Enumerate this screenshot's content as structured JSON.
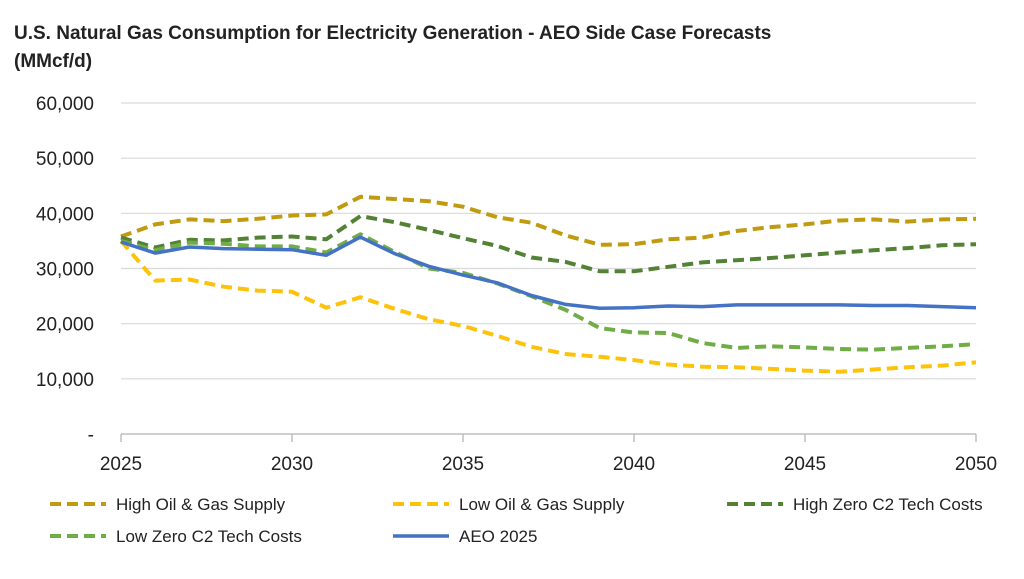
{
  "chart_data": {
    "type": "line",
    "title": "U.S. Natural Gas Consumption for Electricity Generation - AEO Side Case Forecasts",
    "subtitle": "(MMcf/d)",
    "xlim": [
      2025,
      2050
    ],
    "ylim": [
      0,
      60000
    ],
    "x_ticks": [
      2025,
      2030,
      2035,
      2040,
      2045,
      2050
    ],
    "y_ticks": [
      0,
      10000,
      20000,
      30000,
      40000,
      50000,
      60000
    ],
    "y_tick_labels": [
      "-",
      "10,000",
      "20,000",
      "30,000",
      "40,000",
      "50,000",
      "60,000"
    ],
    "grid": "horizontal",
    "legend": "bottom",
    "x": [
      2025,
      2026,
      2027,
      2028,
      2029,
      2030,
      2031,
      2032,
      2033,
      2034,
      2035,
      2036,
      2037,
      2038,
      2039,
      2040,
      2041,
      2042,
      2043,
      2044,
      2045,
      2046,
      2047,
      2048,
      2049,
      2050
    ],
    "series": [
      {
        "name": "High Oil & Gas Supply",
        "color": "#C09A10",
        "style": "dashed",
        "values": [
          35800,
          38000,
          38900,
          38600,
          39000,
          39600,
          39800,
          43000,
          42600,
          42200,
          41200,
          39300,
          38300,
          36000,
          34300,
          34400,
          35300,
          35600,
          36800,
          37500,
          38000,
          38700,
          38900,
          38500,
          38900,
          39000
        ]
      },
      {
        "name": "Low Oil & Gas Supply",
        "color": "#FDC20A",
        "style": "dashed",
        "values": [
          35000,
          27800,
          28000,
          26700,
          26000,
          25800,
          22900,
          24800,
          22700,
          20800,
          19600,
          17800,
          15800,
          14500,
          14000,
          13400,
          12600,
          12200,
          12100,
          11800,
          11500,
          11300,
          11700,
          12100,
          12400,
          13000
        ]
      },
      {
        "name": "High Zero C2 Tech Costs",
        "color": "#548235",
        "style": "dashed",
        "values": [
          35600,
          33800,
          35200,
          35100,
          35600,
          35800,
          35300,
          39500,
          38400,
          37000,
          35500,
          34100,
          32000,
          31200,
          29500,
          29500,
          30300,
          31100,
          31500,
          31900,
          32400,
          32900,
          33300,
          33700,
          34200,
          34400
        ]
      },
      {
        "name": "Low Zero C2 Tech Costs",
        "color": "#70AD47",
        "style": "dashed",
        "values": [
          35000,
          33300,
          34700,
          34500,
          34000,
          34000,
          32900,
          36200,
          33000,
          30000,
          29200,
          27300,
          25000,
          22500,
          19200,
          18400,
          18300,
          16500,
          15600,
          15900,
          15700,
          15400,
          15300,
          15600,
          15900,
          16300
        ]
      },
      {
        "name": "AEO 2025",
        "color": "#4472C4",
        "style": "solid",
        "values": [
          34800,
          32800,
          33900,
          33600,
          33500,
          33400,
          32400,
          35700,
          32700,
          30400,
          28800,
          27400,
          25100,
          23500,
          22800,
          22900,
          23200,
          23100,
          23400,
          23400,
          23400,
          23400,
          23300,
          23300,
          23100,
          22900
        ]
      }
    ]
  }
}
